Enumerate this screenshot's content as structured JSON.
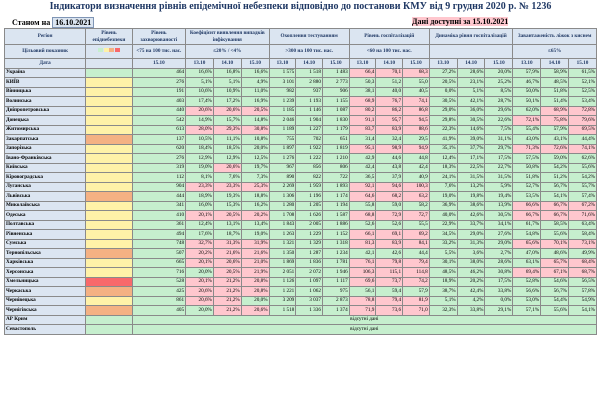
{
  "header": {
    "title": "Індикатори визначення рівнів епідемічної небезпеки відповідно до постанови КМУ від 9 грудня 2020 р. № 1236",
    "as_of_label": "Станом на",
    "as_of_date": "16.10.2021",
    "data_available": "Дані доступні за 15.10.2021"
  },
  "columns": {
    "region": "Регіон",
    "level": "Рівень епіднебезпеки",
    "incidence": "Рівень захворюваності",
    "detect": "Коефіцієнт виявлення випадків інфікування",
    "testing": "Охоплення тестуванням",
    "hosp": "Рівень госпіталізацій",
    "dyn": "Динаміка рівня госпіталізацій",
    "o2": "Завантаженість ліжок з киснем"
  },
  "target_row": {
    "label": "Цільовий показник",
    "incidence": "<75 на 100 тис. нас.",
    "detect": "≤20% / <4%",
    "testing": ">300 на 100 тис. нас.",
    "hosp": "<60 на 100 тис. нас.",
    "dyn": "",
    "o2": "≤65%"
  },
  "date_row": {
    "label": "Дата",
    "incidence": "15.10",
    "dates": [
      "13.10",
      "14.10",
      "15.10"
    ]
  },
  "no_data_text": "відсутні дані",
  "rows": [
    {
      "region": "Україна",
      "level": "",
      "inc": "464",
      "det": [
        "16,6%",
        "16,8%",
        "16,6%"
      ],
      "tst": [
        "1 575",
        "1 518",
        "1 483"
      ],
      "hos": [
        "66,4",
        "70,1",
        "68,3"
      ],
      "dyn": [
        "27,2%",
        "28,6%",
        "20,0%"
      ],
      "o2": [
        "57,9%",
        "58,9%",
        "61,5%"
      ]
    },
    {
      "region": "КИЇВ",
      "level": "",
      "inc": "276",
      "det": [
        "5,1%",
        "5,1%",
        "4,9%"
      ],
      "tst": [
        "3 101",
        "2 880",
        "2 773"
      ],
      "hos": [
        "50,3",
        "51,2",
        "55,0"
      ],
      "dyn": [
        "20,5%",
        "23,1%",
        "25,2%"
      ],
      "o2": [
        "46,7%",
        "48,5%",
        "52,1%"
      ]
    },
    {
      "region": "Вінницька",
      "level": "",
      "inc": "191",
      "det": [
        "10,6%",
        "10,9%",
        "11,0%"
      ],
      "tst": [
        "982",
        "937",
        "906"
      ],
      "hos": [
        "38,1",
        "40,0",
        "40,5"
      ],
      "dyn": [
        "0,0%",
        "5,1%",
        "8,5%"
      ],
      "o2": [
        "50,0%",
        "51,8%",
        "52,5%"
      ]
    },
    {
      "region": "Волинська",
      "level": "",
      "inc": "403",
      "det": [
        "17,4%",
        "17,2%",
        "16,9%"
      ],
      "tst": [
        "1 239",
        "1 193",
        "1 155"
      ],
      "hos": [
        "68,9",
        "76,7",
        "74,1"
      ],
      "dyn": [
        "30,5%",
        "42,1%",
        "28,7%"
      ],
      "o2": [
        "50,1%",
        "51,4%",
        "53,4%"
      ]
    },
    {
      "region": "Дніпропетровська",
      "level": "",
      "inc": "440",
      "det": [
        "20,6%",
        "20,6%",
        "20,5%"
      ],
      "tst": [
        "1 185",
        "1 146",
        "1 087"
      ],
      "hos": [
        "80,2",
        "86,2",
        "86,8"
      ],
      "dyn": [
        "29,0%",
        "36,0%",
        "29,6%"
      ],
      "o2": [
        "62,0%",
        "68,9%",
        "72,8%"
      ]
    },
    {
      "region": "Донецька",
      "level": "",
      "inc": "542",
      "det": [
        "14,9%",
        "15,7%",
        "14,8%"
      ],
      "tst": [
        "2 046",
        "1 904",
        "1 830"
      ],
      "hos": [
        "91,1",
        "95,7",
        "94,5"
      ],
      "dyn": [
        "29,8%",
        "30,5%",
        "22,6%"
      ],
      "o2": [
        "72,1%",
        "75,8%",
        "79,6%"
      ]
    },
    {
      "region": "Житомирська",
      "level": "",
      "inc": "613",
      "det": [
        "28,0%",
        "29,3%",
        "30,8%"
      ],
      "tst": [
        "1 189",
        "1 227",
        "1 179"
      ],
      "hos": [
        "83,7",
        "83,9",
        "88,6"
      ],
      "dyn": [
        "22,3%",
        "14,6%",
        "7,5%"
      ],
      "o2": [
        "55,4%",
        "57,9%",
        "69,5%"
      ]
    },
    {
      "region": "Закарпатська",
      "level": "",
      "inc": "137",
      "det": [
        "10,5%",
        "11,1%",
        "10,8%"
      ],
      "tst": [
        "755",
        "702",
        "651"
      ],
      "hos": [
        "31,4",
        "32,4",
        "29,5"
      ],
      "dyn": [
        "41,9%",
        "39,0%",
        "31,1%"
      ],
      "o2": [
        "43,0%",
        "43,1%",
        "44,4%"
      ]
    },
    {
      "region": "Запорізька",
      "level": "",
      "inc": "620",
      "det": [
        "18,4%",
        "18,5%",
        "20,0%"
      ],
      "tst": [
        "1 897",
        "1 922",
        "1 819"
      ],
      "hos": [
        "95,1",
        "98,9",
        "94,9"
      ],
      "dyn": [
        "35,1%",
        "37,7%",
        "29,7%"
      ],
      "o2": [
        "71,3%",
        "72,6%",
        "74,1%"
      ]
    },
    {
      "region": "Івано-Франківська",
      "level": "",
      "inc": "276",
      "det": [
        "12,9%",
        "12,9%",
        "12,5%"
      ],
      "tst": [
        "1 276",
        "1 222",
        "1 210"
      ],
      "hos": [
        "42,9",
        "44,6",
        "44,8"
      ],
      "dyn": [
        "12,4%",
        "17,1%",
        "17,5%"
      ],
      "o2": [
        "57,5%",
        "59,0%",
        "62,6%"
      ]
    },
    {
      "region": "Київська",
      "level": "",
      "inc": "319",
      "det": [
        "19,0%",
        "20,6%",
        "19,7%"
      ],
      "tst": [
        "967",
        "856",
        "806"
      ],
      "hos": [
        "42,4",
        "43,8",
        "42,4"
      ],
      "dyn": [
        "18,3%",
        "22,5%",
        "22,7%"
      ],
      "o2": [
        "50,8%",
        "54,2%",
        "55,6%"
      ]
    },
    {
      "region": "Кіровоградська",
      "level": "",
      "inc": "112",
      "det": [
        "8,1%",
        "7,6%",
        "7,3%"
      ],
      "tst": [
        "890",
        "822",
        "722"
      ],
      "hos": [
        "36,5",
        "37,9",
        "40,9"
      ],
      "dyn": [
        "24,1%",
        "31,5%",
        "31,5%"
      ],
      "o2": [
        "51,8%",
        "51,2%",
        "54,2%"
      ]
    },
    {
      "region": "Луганська",
      "level": "",
      "inc": "904",
      "det": [
        "23,3%",
        "23,3%",
        "25,3%"
      ],
      "tst": [
        "2 269",
        "1 959",
        "1 893"
      ],
      "hos": [
        "92,1",
        "94,6",
        "100,3"
      ],
      "dyn": [
        "7,6%",
        "13,2%",
        "5,9%"
      ],
      "o2": [
        "52,7%",
        "56,7%",
        "55,7%"
      ]
    },
    {
      "region": "Львівська",
      "level": "",
      "inc": "444",
      "det": [
        "18,9%",
        "19,3%",
        "18,8%"
      ],
      "tst": [
        "1 306",
        "1 196",
        "1 174"
      ],
      "hos": [
        "64,6",
        "68,2",
        "63,2"
      ],
      "dyn": [
        "19,0%",
        "19,8%",
        "19,4%"
      ],
      "o2": [
        "53,5%",
        "54,1%",
        "57,4%"
      ]
    },
    {
      "region": "Миколаївська",
      "level": "",
      "inc": "341",
      "det": [
        "16,0%",
        "15,3%",
        "16,2%"
      ],
      "tst": [
        "1 280",
        "1 205",
        "1 194"
      ],
      "hos": [
        "55,8",
        "59,0",
        "58,2"
      ],
      "dyn": [
        "36,9%",
        "38,6%",
        "13,9%"
      ],
      "o2": [
        "66,6%",
        "66,7%",
        "67,2%"
      ]
    },
    {
      "region": "Одеська",
      "level": "",
      "inc": "410",
      "det": [
        "20,1%",
        "20,5%",
        "20,2%"
      ],
      "tst": [
        "1 708",
        "1 626",
        "1 587"
      ],
      "hos": [
        "68,8",
        "72,9",
        "72,7"
      ],
      "dyn": [
        "40,0%",
        "42,6%",
        "30,5%"
      ],
      "o2": [
        "66,7%",
        "66,7%",
        "71,6%"
      ]
    },
    {
      "region": "Полтавська",
      "level": "",
      "inc": "361",
      "det": [
        "12,4%",
        "13,1%",
        "13,4%"
      ],
      "tst": [
        "1 843",
        "2 005",
        "1 886"
      ],
      "hos": [
        "52,6",
        "52,6",
        "55,5"
      ],
      "dyn": [
        "22,9%",
        "33,7%",
        "34,1%"
      ],
      "o2": [
        "61,7%",
        "58,5%",
        "63,4%"
      ]
    },
    {
      "region": "Рівненська",
      "level": "",
      "inc": "494",
      "det": [
        "17,6%",
        "18,7%",
        "19,0%"
      ],
      "tst": [
        "1 263",
        "1 229",
        "1 152"
      ],
      "hos": [
        "66,1",
        "69,1",
        "69,2"
      ],
      "dyn": [
        "34,5%",
        "29,0%",
        "27,6%"
      ],
      "o2": [
        "54,8%",
        "55,6%",
        "58,4%"
      ]
    },
    {
      "region": "Сумська",
      "level": "",
      "inc": "748",
      "det": [
        "32,7%",
        "31,3%",
        "31,9%"
      ],
      "tst": [
        "1 321",
        "1 329",
        "1 318"
      ],
      "hos": [
        "81,3",
        "83,9",
        "84,1"
      ],
      "dyn": [
        "33,2%",
        "31,3%",
        "29,0%"
      ],
      "o2": [
        "65,6%",
        "70,1%",
        "73,1%"
      ]
    },
    {
      "region": "Тернопільська",
      "level": "",
      "inc": "507",
      "det": [
        "20,2%",
        "21,6%",
        "21,6%"
      ],
      "tst": [
        "1 350",
        "1 287",
        "1 234"
      ],
      "hos": [
        "42,1",
        "42,6",
        "44,4"
      ],
      "dyn": [
        "5,5%",
        "3,6%",
        "2,7%"
      ],
      "o2": [
        "47,0%",
        "48,6%",
        "49,9%"
      ]
    },
    {
      "region": "Харківська",
      "level": "",
      "inc": "665",
      "det": [
        "20,1%",
        "20,6%",
        "21,0%"
      ],
      "tst": [
        "1 869",
        "1 836",
        "1 781"
      ],
      "hos": [
        "76,1",
        "79,8",
        "79,4"
      ],
      "dyn": [
        "30,1%",
        "38,0%",
        "28,6%"
      ],
      "o2": [
        "63,1%",
        "65,7%",
        "68,4%"
      ]
    },
    {
      "region": "Херсонська",
      "level": "",
      "inc": "716",
      "det": [
        "20,0%",
        "20,5%",
        "21,9%"
      ],
      "tst": [
        "2 051",
        "2 072",
        "1 946"
      ],
      "hos": [
        "106,3",
        "115,1",
        "114,8"
      ],
      "dyn": [
        "48,5%",
        "46,2%",
        "30,8%"
      ],
      "o2": [
        "69,4%",
        "67,1%",
        "68,7%"
      ]
    },
    {
      "region": "Хмельницька",
      "level": "",
      "inc": "528",
      "det": [
        "20,1%",
        "21,2%",
        "20,8%"
      ],
      "tst": [
        "1 126",
        "1 097",
        "1 117"
      ],
      "hos": [
        "69,6",
        "73,7",
        "74,2"
      ],
      "dyn": [
        "18,9%",
        "20,2%",
        "17,5%"
      ],
      "o2": [
        "52,8%",
        "54,6%",
        "56,5%"
      ]
    },
    {
      "region": "Черкаська",
      "level": "",
      "inc": "425",
      "det": [
        "20,6%",
        "21,2%",
        "20,8%"
      ],
      "tst": [
        "1 221",
        "1 062",
        "975"
      ],
      "hos": [
        "56,1",
        "59,4",
        "57,9"
      ],
      "dyn": [
        "38,7%",
        "42,4%",
        "33,8%"
      ],
      "o2": [
        "56,6%",
        "56,7%",
        "57,8%"
      ]
    },
    {
      "region": "Чернівецька",
      "level": "",
      "inc": "861",
      "det": [
        "20,6%",
        "21,2%",
        "20,0%"
      ],
      "tst": [
        "3 209",
        "3 037",
        "2 873"
      ],
      "hos": [
        "78,8",
        "79,4",
        "81,9"
      ],
      "dyn": [
        "5,1%",
        "4,2%",
        "0,0%"
      ],
      "o2": [
        "53,0%",
        "54,4%",
        "54,9%"
      ]
    },
    {
      "region": "Чернігівська",
      "level": "",
      "inc": "405",
      "det": [
        "20,0%",
        "21,2%",
        "20,6%"
      ],
      "tst": [
        "1 518",
        "1 336",
        "1 374"
      ],
      "hos": [
        "71,9",
        "73,6",
        "71,0"
      ],
      "dyn": [
        "32,3%",
        "33,8%",
        "29,1%"
      ],
      "o2": [
        "57,1%",
        "55,6%",
        "54,1%"
      ]
    },
    {
      "region": "АР Крим",
      "nodata": true
    },
    {
      "region": "Севастополь",
      "nodata": true
    }
  ],
  "colors": {
    "green": "#c6efce",
    "red": "#ffc7ce",
    "yellow": "#fff2a8",
    "orange": "#f4b183",
    "red_zone": "#f8696b",
    "header": "#dbe5f1"
  }
}
